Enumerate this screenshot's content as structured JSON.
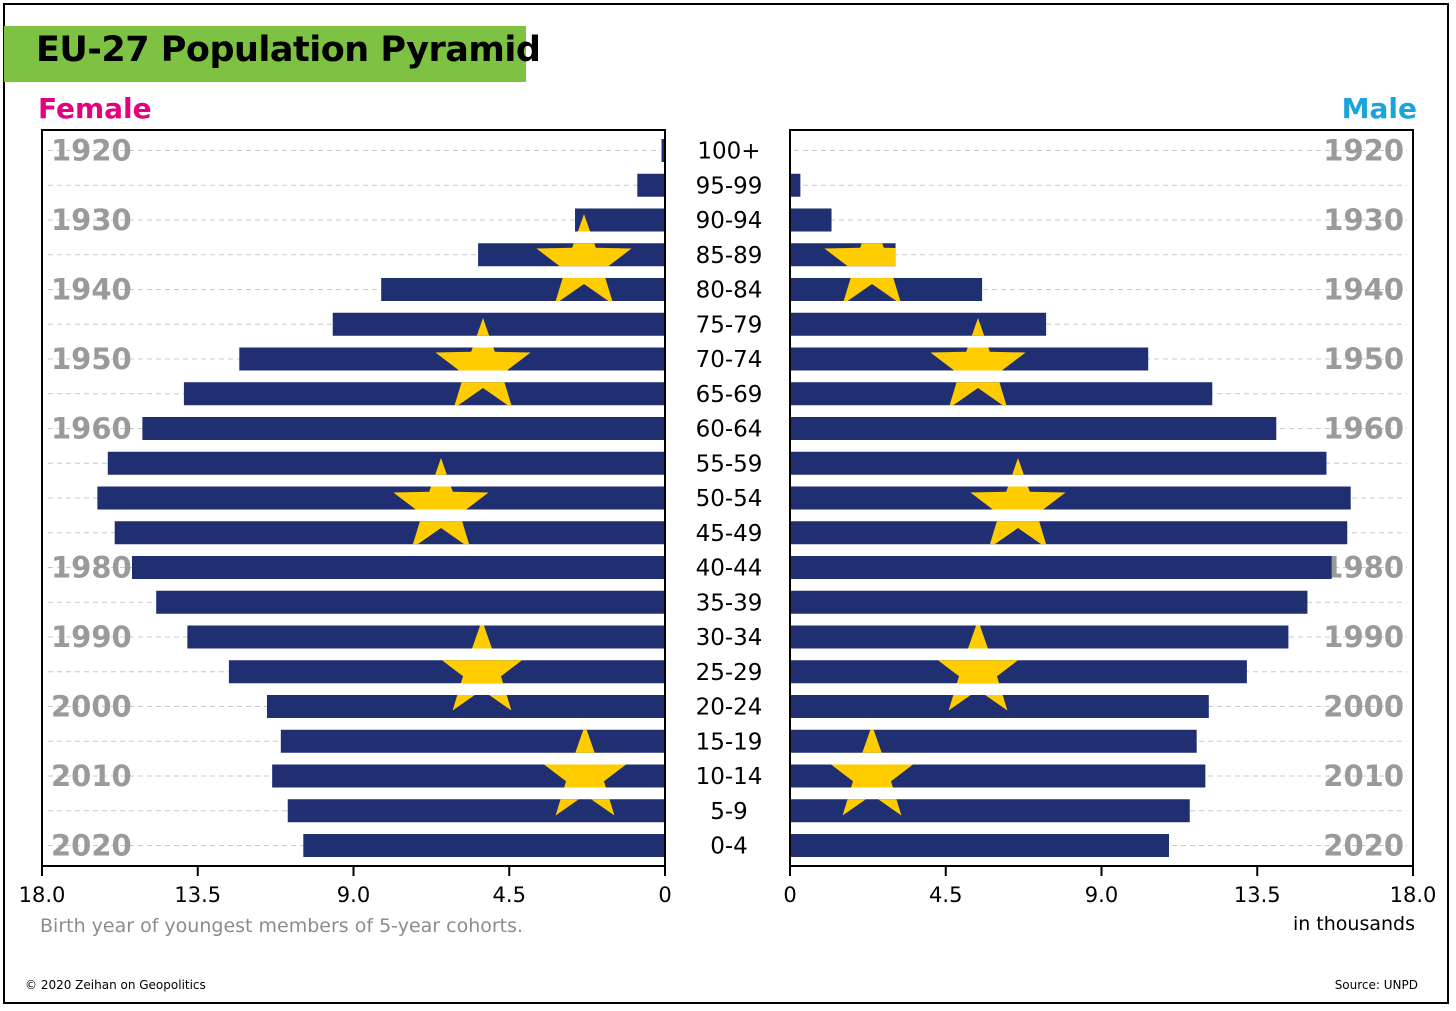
{
  "title": "EU-27 Population Pyramid",
  "female_label": "Female",
  "male_label": "Male",
  "note": "Birth year of youngest members of 5-year cohorts.",
  "unit_label": "in thousands",
  "copyright": "© 2020 Zeihan on Geopolitics",
  "source": "Source: UNPD",
  "colors": {
    "bar": "#1f2f72",
    "star": "#ffcc00",
    "title_bg": "#7dc243",
    "female": "#e5007e",
    "male": "#1ba3dc",
    "year_text": "#9a9a9a",
    "gridline": "#c8c8c8"
  },
  "chart_data": {
    "type": "bar",
    "subtype": "population-pyramid",
    "value_unit": "thousands",
    "axis_ticks": [
      "18.0",
      "13.5",
      "9.0",
      "4.5",
      "0"
    ],
    "axis_range": [
      0,
      18
    ],
    "age_groups": [
      "100+",
      "95-99",
      "90-94",
      "85-89",
      "80-84",
      "75-79",
      "70-74",
      "65-69",
      "60-64",
      "55-59",
      "50-54",
      "45-49",
      "40-44",
      "35-39",
      "30-34",
      "25-29",
      "20-24",
      "15-19",
      "10-14",
      "5-9",
      "0-4"
    ],
    "birth_years": [
      "1920",
      "1930",
      "1940",
      "1950",
      "1960",
      "1980",
      "1990",
      "2000",
      "2010",
      "2020"
    ],
    "series": [
      {
        "name": "Female",
        "values": [
          0.1,
          0.8,
          2.6,
          5.4,
          8.2,
          9.6,
          12.3,
          13.9,
          15.1,
          16.1,
          16.4,
          15.9,
          15.4,
          14.7,
          13.8,
          12.6,
          11.5,
          11.1,
          11.35,
          10.9,
          10.45
        ]
      },
      {
        "name": "Male",
        "values": [
          0.0,
          0.3,
          1.2,
          3.05,
          5.55,
          7.4,
          10.35,
          12.2,
          14.05,
          15.5,
          16.2,
          16.1,
          15.65,
          14.95,
          14.4,
          13.2,
          12.1,
          11.75,
          12.0,
          11.55,
          10.95
        ]
      }
    ]
  }
}
